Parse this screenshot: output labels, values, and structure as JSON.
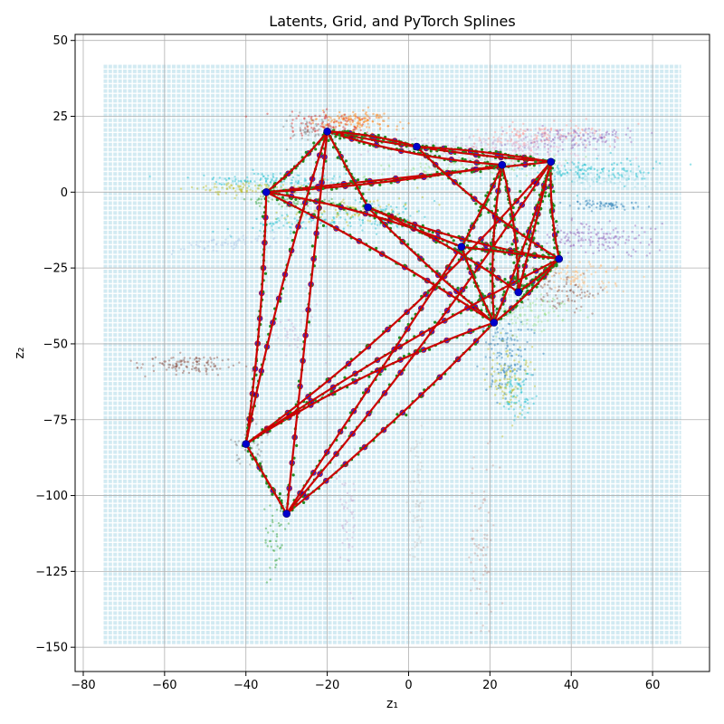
{
  "chart_data": {
    "type": "scatter",
    "title": "Latents, Grid, and PyTorch Splines",
    "xlabel": "z₁",
    "ylabel": "z₂",
    "xlim": [
      -82,
      74
    ],
    "ylim": [
      -158,
      52
    ],
    "xticks": [
      -80,
      -60,
      -40,
      -20,
      0,
      20,
      40,
      60
    ],
    "yticks": [
      -150,
      -125,
      -100,
      -75,
      -50,
      -25,
      0,
      25,
      50
    ],
    "grid": true,
    "background_grid": {
      "x_range": [
        -75,
        67
      ],
      "y_range": [
        -149,
        42
      ],
      "step": 1.2,
      "color": "#add8e6"
    },
    "colors": {
      "spline": "#cc0000",
      "knots": "#0000cc",
      "spline_points": "#228b22"
    },
    "clusters": [
      {
        "cx": -13,
        "cy": 23,
        "sx": 5,
        "sy": 2,
        "angle": 0,
        "n": 140,
        "color": "#ff7f0e"
      },
      {
        "cx": -20,
        "cy": 22,
        "sx": 5,
        "sy": 2,
        "angle": 0,
        "n": 90,
        "color": "#d62728"
      },
      {
        "cx": -24,
        "cy": 20,
        "sx": 3,
        "sy": 2,
        "angle": 0,
        "n": 50,
        "color": "#7f7f7f"
      },
      {
        "cx": -35,
        "cy": 4,
        "sx": 9,
        "sy": 1,
        "angle": 0,
        "n": 100,
        "color": "#17becf"
      },
      {
        "cx": -38,
        "cy": 1,
        "sx": 7,
        "sy": 1.2,
        "angle": 0,
        "n": 90,
        "color": "#bcbd22"
      },
      {
        "cx": -31,
        "cy": -3,
        "sx": 6,
        "sy": 1,
        "angle": 0,
        "n": 60,
        "color": "#2ca02c"
      },
      {
        "cx": -15,
        "cy": -6,
        "sx": 8,
        "sy": 2,
        "angle": 5,
        "n": 110,
        "color": "#bcbd22"
      },
      {
        "cx": -28,
        "cy": -10,
        "sx": 7,
        "sy": 1.2,
        "angle": 8,
        "n": 70,
        "color": "#17becf"
      },
      {
        "cx": -44,
        "cy": -17,
        "sx": 7,
        "sy": 1.2,
        "angle": 10,
        "n": 70,
        "color": "#aec7e8"
      },
      {
        "cx": -6,
        "cy": -8,
        "sx": 5,
        "sy": 3,
        "angle": 0,
        "n": 80,
        "color": "#17becf"
      },
      {
        "cx": 22,
        "cy": 16,
        "sx": 12,
        "sy": 2,
        "angle": 4,
        "n": 170,
        "color": "#c5b0d5"
      },
      {
        "cx": 32,
        "cy": 19,
        "sx": 8,
        "sy": 2,
        "angle": 4,
        "n": 120,
        "color": "#ff9896"
      },
      {
        "cx": 40,
        "cy": 18,
        "sx": 7,
        "sy": 2,
        "angle": 4,
        "n": 120,
        "color": "#9467bd"
      },
      {
        "cx": 26,
        "cy": 13,
        "sx": 9,
        "sy": 2,
        "angle": 0,
        "n": 100,
        "color": "#f7b6d2"
      },
      {
        "cx": 14,
        "cy": 8,
        "sx": 12,
        "sy": 2,
        "angle": 5,
        "n": 110,
        "color": "#98df8a"
      },
      {
        "cx": 44,
        "cy": 7,
        "sx": 9,
        "sy": 2,
        "angle": 0,
        "n": 130,
        "color": "#17becf"
      },
      {
        "cx": 46,
        "cy": 4,
        "sx": 7,
        "sy": 1.5,
        "angle": 0,
        "n": 80,
        "color": "#9edae5"
      },
      {
        "cx": 49,
        "cy": -4,
        "sx": 5,
        "sy": 0.8,
        "angle": 0,
        "n": 60,
        "color": "#1f77b4"
      },
      {
        "cx": 45,
        "cy": -15,
        "sx": 7,
        "sy": 2.5,
        "angle": 0,
        "n": 150,
        "color": "#9467bd"
      },
      {
        "cx": 41,
        "cy": -28,
        "sx": 5,
        "sy": 3,
        "angle": -10,
        "n": 110,
        "color": "#ffbb78"
      },
      {
        "cx": 38,
        "cy": -33,
        "sx": 5,
        "sy": 3,
        "angle": -10,
        "n": 80,
        "color": "#8c564b"
      },
      {
        "cx": 28,
        "cy": -40,
        "sx": 8,
        "sy": 3,
        "angle": 0,
        "n": 110,
        "color": "#98df8a"
      },
      {
        "cx": 24,
        "cy": -53,
        "sx": 3,
        "sy": 7,
        "angle": 0,
        "n": 130,
        "color": "#1f77b4"
      },
      {
        "cx": 25,
        "cy": -62,
        "sx": 3,
        "sy": 6,
        "angle": 0,
        "n": 100,
        "color": "#bcbd22"
      },
      {
        "cx": 27,
        "cy": -66,
        "sx": 2,
        "sy": 4,
        "angle": 0,
        "n": 60,
        "color": "#17becf"
      },
      {
        "cx": -55,
        "cy": -57,
        "sx": 6,
        "sy": 1.5,
        "angle": 0,
        "n": 120,
        "color": "#8c564b"
      },
      {
        "cx": 2,
        "cy": -103,
        "sx": 1,
        "sy": 12,
        "angle": 0,
        "n": 80,
        "color": "#c7c7c7"
      },
      {
        "cx": 18,
        "cy": -113,
        "sx": 1.5,
        "sy": 12,
        "angle": 0,
        "n": 70,
        "color": "#c49c94"
      },
      {
        "cx": -15,
        "cy": -105,
        "sx": 1,
        "sy": 11,
        "angle": 0,
        "n": 50,
        "color": "#c5b0d5"
      },
      {
        "cx": -33,
        "cy": -113,
        "sx": 1.5,
        "sy": 8,
        "angle": 0,
        "n": 40,
        "color": "#2ca02c"
      },
      {
        "cx": -39,
        "cy": -85,
        "sx": 2,
        "sy": 3,
        "angle": 0,
        "n": 40,
        "color": "#7f7f7f"
      },
      {
        "cx": -28,
        "cy": -45,
        "sx": 3,
        "sy": 6,
        "angle": 0,
        "n": 40,
        "color": "#c5b0d5"
      }
    ],
    "knots": [
      {
        "id": "A",
        "x": -20,
        "y": 20
      },
      {
        "id": "B",
        "x": -35,
        "y": 0
      },
      {
        "id": "C",
        "x": 35,
        "y": 10
      },
      {
        "id": "D",
        "x": 37,
        "y": -22
      },
      {
        "id": "E",
        "x": 21,
        "y": -43
      },
      {
        "id": "F",
        "x": -40,
        "y": -83
      },
      {
        "id": "G",
        "x": -30,
        "y": -106
      },
      {
        "id": "H",
        "x": 2,
        "y": 15
      },
      {
        "id": "I",
        "x": 23,
        "y": 9
      },
      {
        "id": "J",
        "x": -10,
        "y": -5
      },
      {
        "id": "K",
        "x": 13,
        "y": -18
      },
      {
        "id": "L",
        "x": 27,
        "y": -33
      }
    ],
    "splines": [
      {
        "from": "A",
        "to": "B"
      },
      {
        "from": "B",
        "to": "F"
      },
      {
        "from": "F",
        "to": "G"
      },
      {
        "from": "G",
        "to": "E"
      },
      {
        "from": "E",
        "to": "D"
      },
      {
        "from": "D",
        "to": "C"
      },
      {
        "from": "C",
        "to": "A"
      },
      {
        "from": "B",
        "to": "C"
      },
      {
        "from": "B",
        "to": "I"
      },
      {
        "from": "A",
        "to": "I"
      },
      {
        "from": "A",
        "to": "H"
      },
      {
        "from": "H",
        "to": "C"
      },
      {
        "from": "A",
        "to": "J"
      },
      {
        "from": "J",
        "to": "E"
      },
      {
        "from": "J",
        "to": "D"
      },
      {
        "from": "B",
        "to": "K"
      },
      {
        "from": "B",
        "to": "E"
      },
      {
        "from": "A",
        "to": "G"
      },
      {
        "from": "A",
        "to": "F"
      },
      {
        "from": "F",
        "to": "C"
      },
      {
        "from": "F",
        "to": "E"
      },
      {
        "from": "F",
        "to": "D"
      },
      {
        "from": "G",
        "to": "K"
      },
      {
        "from": "G",
        "to": "C"
      },
      {
        "from": "I",
        "to": "E"
      },
      {
        "from": "I",
        "to": "L"
      },
      {
        "from": "C",
        "to": "E"
      },
      {
        "from": "K",
        "to": "D"
      },
      {
        "from": "L",
        "to": "D"
      },
      {
        "from": "H",
        "to": "D"
      },
      {
        "from": "J",
        "to": "L"
      },
      {
        "from": "I",
        "to": "K"
      },
      {
        "from": "C",
        "to": "L"
      },
      {
        "from": "K",
        "to": "E"
      }
    ]
  }
}
